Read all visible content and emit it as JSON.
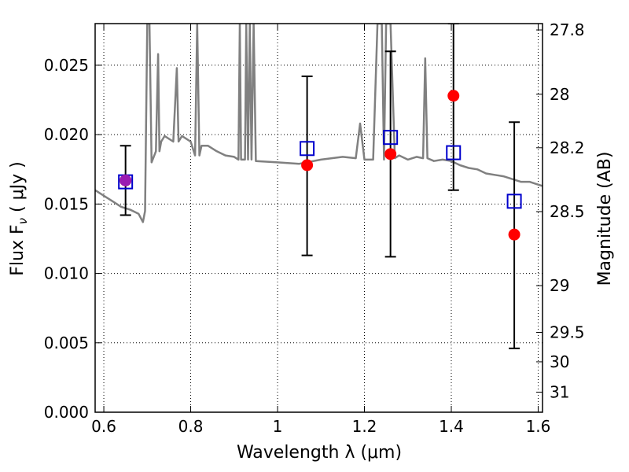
{
  "chart_data": {
    "type": "scatter",
    "xlabel": "Wavelength  λ (μm)",
    "ylabel": "Flux  F",
    "ylabel_subscript": "ν",
    "ylabel_unit": "  ( μJy )",
    "y2label": "Magnitude (AB)",
    "xlim": [
      0.58,
      1.61
    ],
    "ylim": [
      0.0,
      0.028
    ],
    "grid": true,
    "x_ticks": [
      0.6,
      0.8,
      1.0,
      1.2,
      1.4,
      1.6
    ],
    "x_tick_labels": [
      "0.6",
      "0.8",
      "1",
      "1.2",
      "1.4",
      "1.6"
    ],
    "y_ticks": [
      0.0,
      0.005,
      0.01,
      0.015,
      0.02,
      0.025
    ],
    "y_tick_labels": [
      "0.000",
      "0.005",
      "0.010",
      "0.015",
      "0.020",
      "0.025"
    ],
    "y2_ticks": [
      {
        "label": "27.8",
        "mag": 27.8
      },
      {
        "label": "28",
        "mag": 28.0
      },
      {
        "label": "28.2",
        "mag": 28.2
      },
      {
        "label": "28.5",
        "mag": 28.5
      },
      {
        "label": "29",
        "mag": 29.0
      },
      {
        "label": "29.5",
        "mag": 29.5
      },
      {
        "label": "30",
        "mag": 30.0
      },
      {
        "label": "31",
        "mag": 31.0
      }
    ],
    "series": [
      {
        "kind": "model_spectrum",
        "color": "#808080",
        "x": [
          0.58,
          0.6,
          0.62,
          0.64,
          0.66,
          0.68,
          0.69,
          0.695,
          0.7,
          0.705,
          0.71,
          0.72,
          0.725,
          0.728,
          0.732,
          0.74,
          0.76,
          0.768,
          0.772,
          0.78,
          0.8,
          0.81,
          0.815,
          0.82,
          0.825,
          0.84,
          0.86,
          0.88,
          0.9,
          0.91,
          0.913,
          0.916,
          0.92,
          0.925,
          0.928,
          0.932,
          0.936,
          0.94,
          0.945,
          0.95,
          1.0,
          1.05,
          1.1,
          1.15,
          1.18,
          1.19,
          1.2,
          1.22,
          1.23,
          1.24,
          1.245,
          1.25,
          1.26,
          1.27,
          1.28,
          1.3,
          1.32,
          1.335,
          1.34,
          1.345,
          1.36,
          1.38,
          1.4,
          1.42,
          1.44,
          1.46,
          1.48,
          1.5,
          1.52,
          1.54,
          1.56,
          1.58,
          1.6,
          1.61
        ],
        "y": [
          0.016,
          0.0156,
          0.0152,
          0.0148,
          0.0146,
          0.0143,
          0.0137,
          0.0145,
          0.028,
          0.028,
          0.018,
          0.0188,
          0.0258,
          0.0188,
          0.0195,
          0.0199,
          0.0195,
          0.0248,
          0.0195,
          0.0199,
          0.0195,
          0.0185,
          0.028,
          0.0185,
          0.0192,
          0.0192,
          0.0188,
          0.0185,
          0.0184,
          0.0182,
          0.028,
          0.0182,
          0.0182,
          0.0182,
          0.028,
          0.0182,
          0.028,
          0.0182,
          0.028,
          0.0181,
          0.018,
          0.0179,
          0.0182,
          0.0184,
          0.0183,
          0.0208,
          0.0182,
          0.0182,
          0.028,
          0.028,
          0.0182,
          0.028,
          0.028,
          0.0183,
          0.0185,
          0.0182,
          0.0184,
          0.0183,
          0.0255,
          0.0183,
          0.0181,
          0.0182,
          0.0181,
          0.0178,
          0.0176,
          0.0175,
          0.0172,
          0.0171,
          0.017,
          0.0168,
          0.0166,
          0.0166,
          0.0164,
          0.0163
        ]
      },
      {
        "kind": "observed",
        "color": "#ff0000",
        "x": [
          0.65,
          1.068,
          1.26,
          1.405,
          1.545
        ],
        "y": [
          0.0167,
          0.0178,
          0.0186,
          0.0228,
          0.0128
        ]
      },
      {
        "kind": "model_photometry",
        "color": "#0000cc",
        "x": [
          0.65,
          1.068,
          1.26,
          1.405,
          1.545
        ],
        "y": [
          0.0166,
          0.019,
          0.0198,
          0.0187,
          0.0152
        ]
      }
    ],
    "error_bars": {
      "color": "#000000",
      "x": [
        0.65,
        1.068,
        1.26,
        1.405,
        1.545
      ],
      "low": [
        0.0142,
        0.0113,
        0.0112,
        0.016,
        0.0046
      ],
      "high": [
        0.0192,
        0.0242,
        0.026,
        0.028,
        0.0209
      ]
    },
    "overlap_point": {
      "color": "#9a1ab2",
      "x": 0.65,
      "y": 0.0167
    }
  }
}
